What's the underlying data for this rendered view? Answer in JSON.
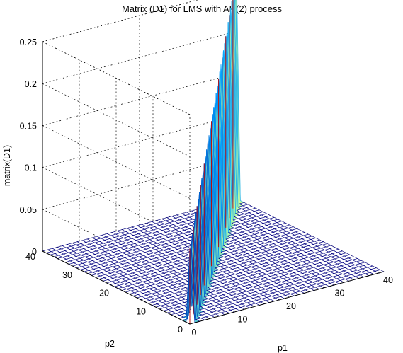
{
  "chart_data": {
    "type": "surface",
    "title": "Matrix (D1) for LMS with AR(2) process",
    "xlabel": "p1",
    "ylabel": "p2",
    "zlabel": "matrix(D1)",
    "xlim": [
      0,
      40
    ],
    "ylim": [
      0,
      40
    ],
    "zlim": [
      0,
      0.25
    ],
    "x_ticks": [
      "0",
      "10",
      "20",
      "30",
      "40"
    ],
    "y_ticks": [
      "0",
      "10",
      "20",
      "30",
      "40"
    ],
    "z_ticks": [
      "0",
      "0.05",
      "0.1",
      "0.15",
      "0.2",
      "0.25"
    ],
    "grid": true,
    "mesh_size": 40,
    "description_values": {
      "ridge_along": "p1 = p2",
      "ridge_peak_start": 0.09,
      "ridge_peak_end": 0.27,
      "off_ridge_value": 0
    },
    "colors": {
      "mesh_low": "#000080",
      "mesh_mid": "#00a0ff",
      "mesh_high": "#c0ffa0",
      "accent_red": "#c00000"
    }
  }
}
